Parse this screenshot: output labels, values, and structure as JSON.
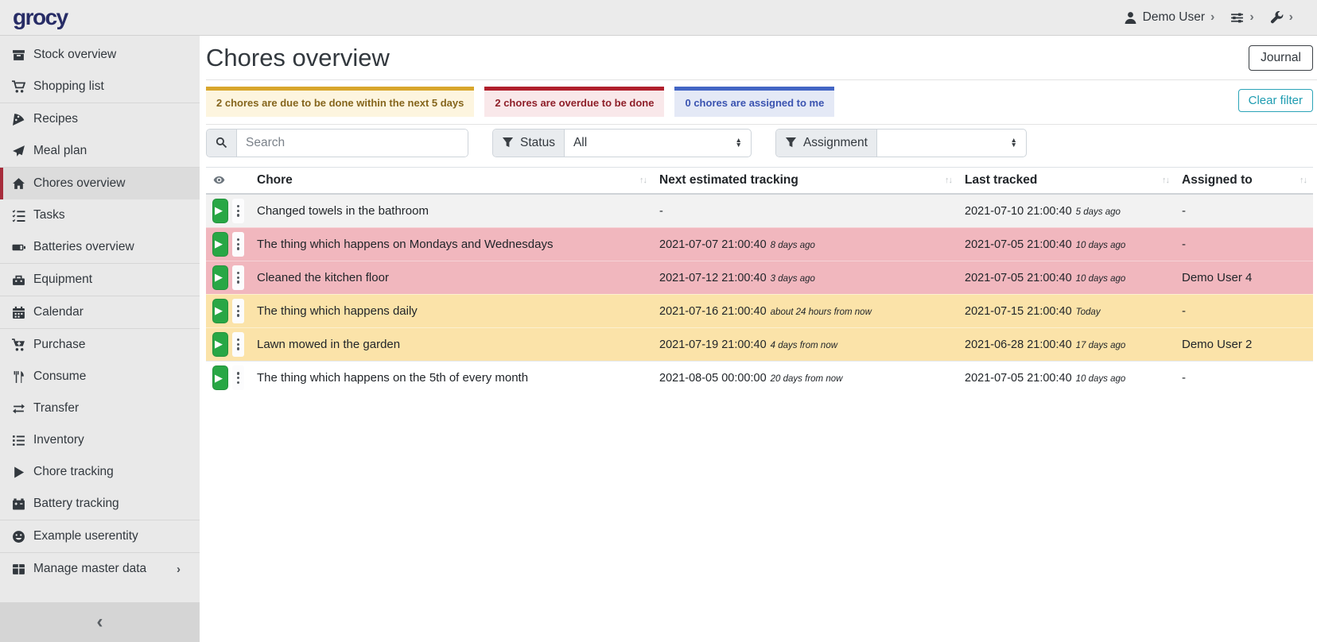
{
  "navbar": {
    "logo": "grocy",
    "user_label": "Demo User",
    "user_icon": "user-icon",
    "settings_icon": "sliders-icon",
    "admin_icon": "wrench-icon"
  },
  "sidebar": {
    "items": [
      {
        "label": "Stock overview",
        "icon": "box-icon",
        "active": false,
        "divider_before": false
      },
      {
        "label": "Shopping list",
        "icon": "cart-icon",
        "active": false,
        "divider_before": false
      },
      {
        "label": "Recipes",
        "icon": "pizza-icon",
        "active": false,
        "divider_before": true
      },
      {
        "label": "Meal plan",
        "icon": "paper-plane-icon",
        "active": false,
        "divider_before": false
      },
      {
        "label": "Chores overview",
        "icon": "home-icon",
        "active": true,
        "divider_before": true
      },
      {
        "label": "Tasks",
        "icon": "tasks-icon",
        "active": false,
        "divider_before": false
      },
      {
        "label": "Batteries overview",
        "icon": "battery-icon",
        "active": false,
        "divider_before": false
      },
      {
        "label": "Equipment",
        "icon": "toolbox-icon",
        "active": false,
        "divider_before": true
      },
      {
        "label": "Calendar",
        "icon": "calendar-icon",
        "active": false,
        "divider_before": true
      },
      {
        "label": "Purchase",
        "icon": "cart-plus-icon",
        "active": false,
        "divider_before": true
      },
      {
        "label": "Consume",
        "icon": "utensils-icon",
        "active": false,
        "divider_before": false
      },
      {
        "label": "Transfer",
        "icon": "transfer-icon",
        "active": false,
        "divider_before": false
      },
      {
        "label": "Inventory",
        "icon": "list-icon",
        "active": false,
        "divider_before": false
      },
      {
        "label": "Chore tracking",
        "icon": "play-icon",
        "active": false,
        "divider_before": false
      },
      {
        "label": "Battery tracking",
        "icon": "car-battery-icon",
        "active": false,
        "divider_before": false
      },
      {
        "label": "Example userentity",
        "icon": "smiley-icon",
        "active": false,
        "divider_before": true
      },
      {
        "label": "Manage master data",
        "icon": "table-icon",
        "active": false,
        "divider_before": true,
        "chevron": true
      }
    ],
    "collapse_icon": "chevron-left-icon"
  },
  "header": {
    "title": "Chores overview",
    "journal_button": "Journal"
  },
  "filters": {
    "chips": [
      {
        "type": "warning",
        "text": "2 chores are due to be done within the next 5 days"
      },
      {
        "type": "danger",
        "text": "2 chores are overdue to be done"
      },
      {
        "type": "info",
        "text": "0 chores are assigned to me"
      }
    ],
    "clear_button": "Clear filter",
    "search_placeholder": "Search",
    "status_label": "Status",
    "status_value": "All",
    "assignment_label": "Assignment",
    "assignment_value": ""
  },
  "table": {
    "columns": [
      "Chore",
      "Next estimated tracking",
      "Last tracked",
      "Assigned to"
    ],
    "rows": [
      {
        "chore": "Changed towels in the bathroom",
        "next": "-",
        "next_rel": "",
        "last": "2021-07-10 21:00:40",
        "last_rel": "5 days ago",
        "assigned": "-",
        "highlight": "plain"
      },
      {
        "chore": "The thing which happens on Mondays and Wednesdays",
        "next": "2021-07-07 21:00:40",
        "next_rel": "8 days ago",
        "last": "2021-07-05 21:00:40",
        "last_rel": "10 days ago",
        "assigned": "-",
        "highlight": "danger"
      },
      {
        "chore": "Cleaned the kitchen floor",
        "next": "2021-07-12 21:00:40",
        "next_rel": "3 days ago",
        "last": "2021-07-05 21:00:40",
        "last_rel": "10 days ago",
        "assigned": "Demo User 4",
        "highlight": "danger"
      },
      {
        "chore": "The thing which happens daily",
        "next": "2021-07-16 21:00:40",
        "next_rel": "about 24 hours from now",
        "last": "2021-07-15 21:00:40",
        "last_rel": "Today",
        "assigned": "-",
        "highlight": "warning"
      },
      {
        "chore": "Lawn mowed in the garden",
        "next": "2021-07-19 21:00:40",
        "next_rel": "4 days from now",
        "last": "2021-06-28 21:00:40",
        "last_rel": "17 days ago",
        "assigned": "Demo User 2",
        "highlight": "warning"
      },
      {
        "chore": "The thing which happens on the 5th of every month",
        "next": "2021-08-05 00:00:00",
        "next_rel": "20 days from now",
        "last": "2021-07-05 21:00:40",
        "last_rel": "10 days ago",
        "assigned": "-",
        "highlight": "plain"
      }
    ]
  },
  "colors": {
    "success_green": "#28a745",
    "danger_row": "#f1b7be",
    "warning_row": "#fbe3a9",
    "info_teal": "#17a2b8",
    "chip_warning_border": "#d8a62c",
    "chip_danger_border": "#b01f2c",
    "chip_info_border": "#4365c4",
    "sidebar_active_accent": "#a62c3b",
    "logo_navy": "#272c66"
  }
}
